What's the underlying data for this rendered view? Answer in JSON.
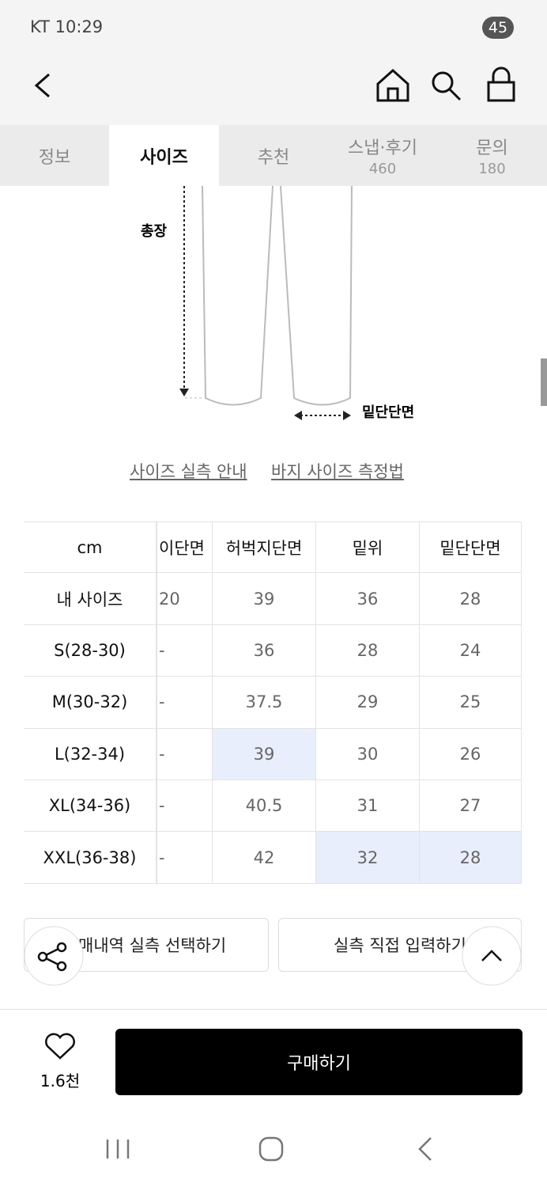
{
  "status_bar": {
    "carrier_time": "KT 10:29",
    "battery": "45"
  },
  "tabs": [
    {
      "label": "정보"
    },
    {
      "label": "사이즈"
    },
    {
      "label": "추천"
    },
    {
      "label": "스냅·후기",
      "count": "460"
    },
    {
      "label": "문의",
      "count": "180"
    }
  ],
  "diagram": {
    "length_label": "총장",
    "hem_label": "밑단단면"
  },
  "links": [
    "사이즈 실측 안내",
    "바지 사이즈 측정법"
  ],
  "table": {
    "header": [
      "cm",
      "이단면",
      "허벅지단면",
      "밑위",
      "밑단단면"
    ],
    "rows": [
      [
        "내 사이즈",
        "20",
        "39",
        "36",
        "28"
      ],
      [
        "S(28-30)",
        "-",
        "36",
        "28",
        "24"
      ],
      [
        "M(30-32)",
        "-",
        "37.5",
        "29",
        "25"
      ],
      [
        "L(32-34)",
        "-",
        "39",
        "30",
        "26"
      ],
      [
        "XL(34-36)",
        "-",
        "40.5",
        "31",
        "27"
      ],
      [
        "XXL(36-38)",
        "-",
        "42",
        "32",
        "28"
      ]
    ]
  },
  "buttons": [
    "매내역 실측 선택하기",
    "실측 직접 입력하기"
  ],
  "likes": "1.6천",
  "buy_button": "구매하기"
}
